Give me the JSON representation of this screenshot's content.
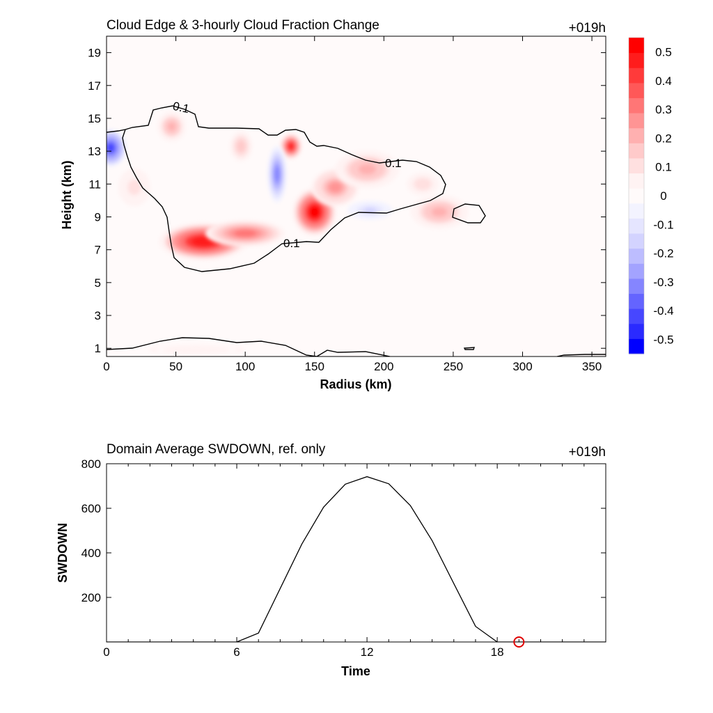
{
  "chart_data": [
    {
      "type": "heatmap",
      "title": "Cloud Edge & 3-hourly Cloud Fraction Change",
      "time_label": "+019h",
      "xlabel": "Radius (km)",
      "ylabel": "Height (km)",
      "xlim": [
        0,
        360
      ],
      "ylim": [
        0.5,
        20
      ],
      "xticks": [
        0,
        50,
        100,
        150,
        200,
        250,
        300,
        350
      ],
      "yticks": [
        1,
        3,
        5,
        7,
        9,
        11,
        13,
        15,
        17,
        19
      ],
      "colorbar": {
        "min": -0.55,
        "max": 0.55,
        "ticks": [
          -0.5,
          -0.4,
          -0.3,
          -0.2,
          -0.1,
          0,
          0.1,
          0.2,
          0.3,
          0.4,
          0.5
        ],
        "tick_labels": [
          "-0.5",
          "-0.4",
          "-0.3",
          "-0.2",
          "-0.1",
          "0",
          "0.1",
          "0.2",
          "0.3",
          "0.4",
          "0.5"
        ],
        "colors": [
          "#0000ff",
          "#2a2aff",
          "#4747ff",
          "#6464ff",
          "#8585ff",
          "#a3a3ff",
          "#bdbdff",
          "#d3d3ff",
          "#e5e5ff",
          "#f3f3ff",
          "#fffafa",
          "#fff3f3",
          "#ffe0e0",
          "#ffcaca",
          "#ffb0b0",
          "#ff9494",
          "#ff7676",
          "#ff5858",
          "#ff3a3a",
          "#ff1c1c",
          "#ff0000"
        ]
      },
      "contour_level": 0.1,
      "contour_labels": [
        "0.1",
        "0.1",
        "0.1"
      ],
      "anomalies": [
        {
          "x": 70,
          "y": 7.5,
          "rx": 28,
          "ry": 1.0,
          "value": 0.48
        },
        {
          "x": 100,
          "y": 8.0,
          "rx": 25,
          "ry": 0.7,
          "value": 0.3
        },
        {
          "x": 150,
          "y": 9.3,
          "rx": 14,
          "ry": 1.3,
          "value": 0.5
        },
        {
          "x": 165,
          "y": 10.8,
          "rx": 15,
          "ry": 1.0,
          "value": 0.25
        },
        {
          "x": 133,
          "y": 13.3,
          "rx": 7,
          "ry": 0.7,
          "value": 0.45
        },
        {
          "x": 97,
          "y": 13.3,
          "rx": 7,
          "ry": 0.8,
          "value": 0.18
        },
        {
          "x": 47,
          "y": 14.5,
          "rx": 9,
          "ry": 0.8,
          "value": 0.2
        },
        {
          "x": 188,
          "y": 11.9,
          "rx": 20,
          "ry": 1.0,
          "value": 0.2
        },
        {
          "x": 240,
          "y": 9.3,
          "rx": 18,
          "ry": 0.9,
          "value": 0.2
        },
        {
          "x": 228,
          "y": 11.0,
          "rx": 10,
          "ry": 0.6,
          "value": 0.12
        },
        {
          "x": 20,
          "y": 10.8,
          "rx": 10,
          "ry": 1.0,
          "value": 0.1
        },
        {
          "x": 3,
          "y": 13.2,
          "rx": 10,
          "ry": 1.0,
          "value": -0.4
        },
        {
          "x": 123,
          "y": 11.6,
          "rx": 6,
          "ry": 1.5,
          "value": -0.3
        },
        {
          "x": 190,
          "y": 9.4,
          "rx": 14,
          "ry": 0.5,
          "value": -0.15
        },
        {
          "x": 65,
          "y": 0.9,
          "rx": 30,
          "ry": 0.3,
          "value": 0.07
        }
      ]
    },
    {
      "type": "line",
      "title": "Domain Average SWDOWN, ref. only",
      "time_label": "+019h",
      "xlabel": "Time",
      "ylabel": "SWDOWN",
      "xlim": [
        0,
        23
      ],
      "ylim": [
        0,
        800
      ],
      "xticks": [
        0,
        6,
        12,
        18
      ],
      "yticks": [
        200,
        400,
        600,
        800
      ],
      "series": [
        {
          "x": [
            0,
            1,
            2,
            3,
            4,
            5,
            6,
            7,
            8,
            9,
            10,
            11,
            12,
            13,
            14,
            15,
            16,
            17,
            18,
            19,
            20,
            21,
            22,
            23
          ],
          "values": [
            0,
            0,
            0,
            0,
            0,
            0,
            0,
            40,
            240,
            440,
            605,
            708,
            742,
            710,
            612,
            455,
            262,
            70,
            0,
            0,
            0,
            0,
            0,
            0
          ]
        }
      ],
      "marker": {
        "x": 19,
        "y": 0
      }
    }
  ]
}
